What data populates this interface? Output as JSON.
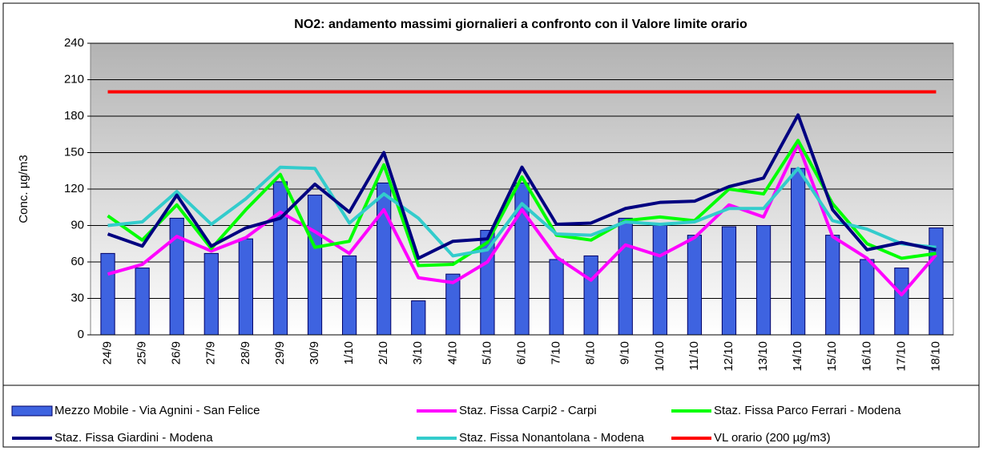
{
  "chart_data": {
    "type": "bar_line",
    "title": "NO2: andamento massimi giornalieri  a  confronto con il Valore limite orario",
    "y_label": "Conc. µg/m3",
    "categories": [
      "24/9",
      "25/9",
      "26/9",
      "27/9",
      "28/9",
      "29/9",
      "30/9",
      "1/10",
      "2/10",
      "3/10",
      "4/10",
      "5/10",
      "6/10",
      "7/10",
      "8/10",
      "9/10",
      "10/10",
      "11/10",
      "12/10",
      "13/10",
      "14/10",
      "15/10",
      "16/10",
      "17/10",
      "18/10"
    ],
    "series": [
      {
        "name": "Mezzo Mobile - Via Agnini - San Felice",
        "kind": "bar",
        "color": "#3e63e0",
        "values": [
          67,
          55,
          96,
          67,
          79,
          126,
          115,
          65,
          125,
          28,
          50,
          86,
          125,
          62,
          65,
          96,
          90,
          82,
          89,
          90,
          137,
          82,
          62,
          55,
          88
        ]
      },
      {
        "name": "Staz. Fissa Carpi2 - Carpi",
        "kind": "line",
        "color": "#ff00ff",
        "values": [
          50,
          58,
          81,
          69,
          80,
          101,
          85,
          67,
          103,
          47,
          43,
          60,
          103,
          64,
          45,
          74,
          65,
          80,
          107,
          97,
          157,
          81,
          63,
          33,
          66
        ]
      },
      {
        "name": "Staz. Fissa Parco Ferrari - Modena",
        "kind": "line",
        "color": "#00ff00",
        "values": [
          98,
          78,
          107,
          71,
          103,
          132,
          72,
          77,
          140,
          57,
          58,
          76,
          130,
          82,
          78,
          94,
          97,
          94,
          120,
          116,
          160,
          108,
          75,
          63,
          67
        ]
      },
      {
        "name": "Staz. Fissa Giardini - Modena",
        "kind": "line",
        "color": "#000080",
        "values": [
          83,
          73,
          115,
          73,
          88,
          96,
          124,
          101,
          150,
          63,
          77,
          79,
          138,
          91,
          92,
          104,
          109,
          110,
          122,
          129,
          181,
          103,
          70,
          76,
          70
        ]
      },
      {
        "name": "Staz. Fissa Nonantolana - Modena",
        "kind": "line",
        "color": "#33cccc",
        "values": [
          90,
          93,
          118,
          91,
          112,
          138,
          137,
          92,
          116,
          96,
          65,
          70,
          108,
          83,
          82,
          93,
          91,
          93,
          104,
          104,
          137,
          94,
          87,
          75,
          72
        ]
      },
      {
        "name": "VL orario (200 µg/m3)",
        "kind": "line",
        "color": "#ff0000",
        "values": [
          200,
          200,
          200,
          200,
          200,
          200,
          200,
          200,
          200,
          200,
          200,
          200,
          200,
          200,
          200,
          200,
          200,
          200,
          200,
          200,
          200,
          200,
          200,
          200,
          200
        ]
      }
    ],
    "ylim": [
      0,
      240
    ],
    "yticks": [
      0,
      30,
      60,
      90,
      120,
      150,
      180,
      210,
      240
    ],
    "grid": true,
    "legend": "bottom"
  }
}
